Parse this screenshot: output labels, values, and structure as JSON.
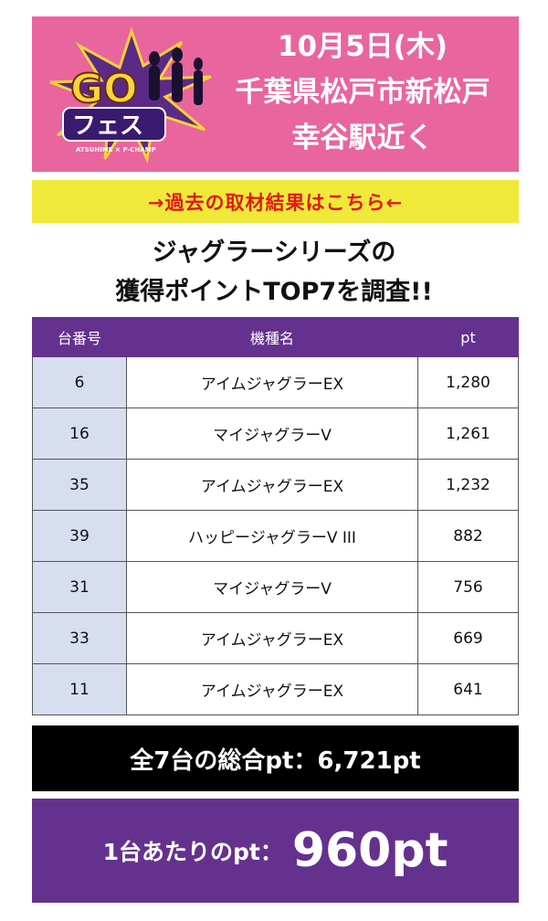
{
  "banner": {
    "logo_main": "GO",
    "logo_sub": "フェス",
    "logo_tag": "ATSUHIME × P-CHAMP",
    "date": "10月5日(木)",
    "location_line1": "千葉県松戸市新松戸",
    "location_line2": "幸谷駅近く",
    "bg_color": "#e9659e"
  },
  "link_bar": {
    "label": "→過去の取材結果はこちら←",
    "bg_color": "#efe93a",
    "text_color": "#e11919"
  },
  "headline": {
    "line1": "ジャグラーシリーズの",
    "line2": "獲得ポイントTOP7を調査!!"
  },
  "table": {
    "header_color": "#65318e",
    "columns": [
      "台番号",
      "機種名",
      "pt"
    ],
    "rows": [
      {
        "no": "6",
        "machine": "アイムジャグラーEX",
        "pt": "1,280"
      },
      {
        "no": "16",
        "machine": "マイジャグラーV",
        "pt": "1,261"
      },
      {
        "no": "35",
        "machine": "アイムジャグラーEX",
        "pt": "1,232"
      },
      {
        "no": "39",
        "machine": "ハッピージャグラーV III",
        "pt": "882"
      },
      {
        "no": "31",
        "machine": "マイジャグラーV",
        "pt": "756"
      },
      {
        "no": "33",
        "machine": "アイムジャグラーEX",
        "pt": "669"
      },
      {
        "no": "11",
        "machine": "アイムジャグラーEX",
        "pt": "641"
      }
    ]
  },
  "summary": {
    "total_text": "全7台の総合pt：6,721pt",
    "avg_label": "1台あたりのpt：",
    "avg_value": "960pt"
  }
}
